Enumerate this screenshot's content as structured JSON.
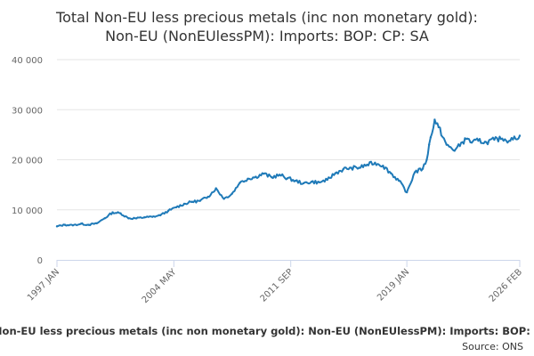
{
  "chart_data": {
    "type": "line",
    "title_lines": [
      "Total Non-EU less precious metals (inc non monetary gold):",
      "Non-EU (NonEUlessPM): Imports: BOP: CP: SA"
    ],
    "xlabel": "",
    "ylabel": "",
    "ylim": [
      0,
      40000
    ],
    "y_ticks": [
      0,
      10000,
      20000,
      30000,
      40000
    ],
    "y_tick_labels": [
      "0",
      "10 000",
      "20 000",
      "30 000",
      "40 000"
    ],
    "x_range": [
      1997.0,
      2026.1
    ],
    "x_ticks": [
      1997.0,
      2004.35,
      2011.7,
      2019.0,
      2026.1
    ],
    "x_tick_labels": [
      "1997 JAN",
      "2004 MAY",
      "2011 SEP",
      "2019 JAN",
      "2026 FEB"
    ],
    "grid": true,
    "series_color": "#1f7ab8",
    "series": [
      {
        "name": "Total Non-EU less precious metals (inc non monetary gold): Non-EU (NonEUlessPM): Imports: BOP: CP: SA",
        "x": [
          1997.0,
          1997.5,
          1998.0,
          1998.5,
          1999.0,
          1999.5,
          2000.0,
          2000.5,
          2001.0,
          2001.5,
          2002.0,
          2002.5,
          2003.0,
          2003.5,
          2004.0,
          2004.5,
          2005.0,
          2005.5,
          2006.0,
          2006.5,
          2007.0,
          2007.5,
          2008.0,
          2008.5,
          2009.0,
          2009.5,
          2010.0,
          2010.5,
          2011.0,
          2011.5,
          2012.0,
          2012.5,
          2013.0,
          2013.5,
          2014.0,
          2014.5,
          2015.0,
          2015.5,
          2016.0,
          2016.5,
          2017.0,
          2017.5,
          2018.0,
          2018.5,
          2019.0,
          2019.5,
          2020.0,
          2020.25,
          2020.4,
          2020.5,
          2020.75,
          2021.0,
          2021.5,
          2022.0,
          2022.5,
          2022.8,
          2023.0,
          2023.5,
          2024.0,
          2024.5,
          2025.0,
          2025.5,
          2026.1
        ],
        "values": [
          6700,
          7000,
          6900,
          7200,
          7000,
          7300,
          8300,
          9500,
          9300,
          8300,
          8300,
          8500,
          8600,
          8900,
          9800,
          10500,
          11200,
          11600,
          11800,
          12600,
          14300,
          12200,
          13200,
          15400,
          16200,
          16600,
          17200,
          16500,
          17000,
          16300,
          15800,
          15300,
          15600,
          15500,
          16000,
          17300,
          18100,
          18400,
          18400,
          19000,
          19400,
          18800,
          17300,
          15800,
          13500,
          17500,
          18200,
          20000,
          23000,
          24500,
          28000,
          26500,
          23000,
          21800,
          23500,
          24200,
          23500,
          23800,
          23500,
          24000,
          24200,
          23800,
          24800
        ]
      }
    ]
  },
  "legend": {
    "label": "Total Non-EU less precious metals (inc non monetary gold): Non-EU (NonEUlessPM): Imports: BOP: CP: SA"
  },
  "source": {
    "label": "Source: ONS"
  }
}
